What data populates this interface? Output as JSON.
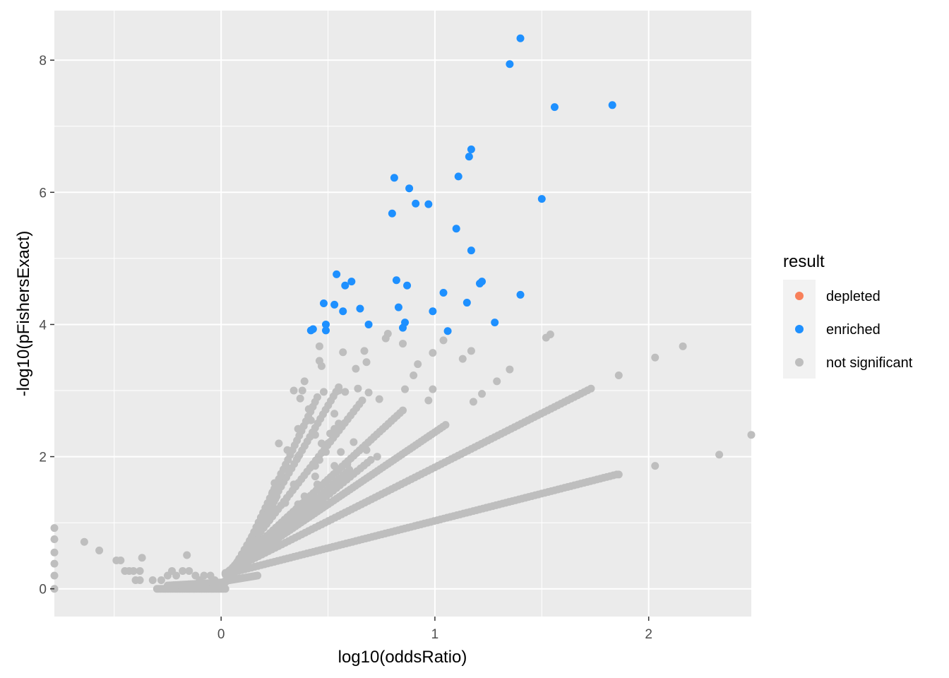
{
  "chart_data": {
    "type": "scatter",
    "xlabel": "log10(oddsRatio)",
    "ylabel": "-log10(pFishersExact)",
    "xlim": [
      -0.78,
      2.48
    ],
    "ylim": [
      -0.42,
      8.75
    ],
    "x_ticks": [
      0,
      1,
      2
    ],
    "x_tick_labels": [
      "0",
      "1",
      "2"
    ],
    "y_ticks": [
      0,
      2,
      4,
      6,
      8
    ],
    "y_tick_labels": [
      "0",
      "2",
      "4",
      "6",
      "8"
    ],
    "grid": true,
    "legend": {
      "title": "result",
      "placement": "right",
      "entries": [
        {
          "label": "depleted",
          "color": "#F8805A"
        },
        {
          "label": "enriched",
          "color": "#1E90FF"
        },
        {
          "label": "not significant",
          "color": "#BEBEBE"
        }
      ]
    },
    "colors": {
      "panel_background": "#EBEBEB",
      "grid_line": "#FFFFFF",
      "depleted": "#F8805A",
      "enriched": "#1E90FF",
      "not_significant": "#BEBEBE"
    },
    "series": [
      {
        "name": "enriched",
        "color": "#1E90FF",
        "points": [
          [
            1.4,
            8.33
          ],
          [
            1.35,
            7.94
          ],
          [
            1.56,
            7.29
          ],
          [
            1.83,
            7.32
          ],
          [
            1.17,
            6.65
          ],
          [
            1.16,
            6.54
          ],
          [
            1.11,
            6.24
          ],
          [
            0.81,
            6.22
          ],
          [
            0.88,
            6.06
          ],
          [
            0.91,
            5.83
          ],
          [
            0.97,
            5.82
          ],
          [
            0.8,
            5.68
          ],
          [
            1.5,
            5.9
          ],
          [
            1.1,
            5.45
          ],
          [
            1.17,
            5.12
          ],
          [
            0.54,
            4.76
          ],
          [
            0.61,
            4.65
          ],
          [
            0.58,
            4.59
          ],
          [
            0.82,
            4.67
          ],
          [
            0.87,
            4.59
          ],
          [
            1.22,
            4.65
          ],
          [
            1.21,
            4.62
          ],
          [
            1.04,
            4.48
          ],
          [
            1.4,
            4.45
          ],
          [
            0.48,
            4.32
          ],
          [
            0.53,
            4.3
          ],
          [
            0.57,
            4.2
          ],
          [
            0.65,
            4.24
          ],
          [
            0.83,
            4.26
          ],
          [
            1.15,
            4.33
          ],
          [
            0.99,
            4.2
          ],
          [
            0.49,
            4.0
          ],
          [
            0.43,
            3.93
          ],
          [
            0.42,
            3.91
          ],
          [
            0.49,
            3.91
          ],
          [
            0.69,
            4.0
          ],
          [
            0.85,
            3.95
          ],
          [
            0.86,
            4.03
          ],
          [
            1.06,
            3.9
          ],
          [
            1.28,
            4.03
          ]
        ]
      },
      {
        "name": "not significant",
        "color": "#BEBEBE",
        "points": [
          [
            -0.78,
            0.92
          ],
          [
            -0.78,
            0.75
          ],
          [
            -0.78,
            0.55
          ],
          [
            -0.78,
            0.38
          ],
          [
            -0.78,
            0.2
          ],
          [
            -0.78,
            0.0
          ],
          [
            -0.64,
            0.71
          ],
          [
            -0.57,
            0.58
          ],
          [
            -0.49,
            0.43
          ],
          [
            -0.47,
            0.43
          ],
          [
            -0.45,
            0.27
          ],
          [
            -0.43,
            0.27
          ],
          [
            -0.41,
            0.27
          ],
          [
            -0.38,
            0.27
          ],
          [
            -0.4,
            0.13
          ],
          [
            -0.38,
            0.13
          ],
          [
            -0.37,
            0.47
          ],
          [
            -0.32,
            0.13
          ],
          [
            -0.28,
            0.13
          ],
          [
            -0.25,
            0.2
          ],
          [
            -0.23,
            0.27
          ],
          [
            -0.21,
            0.2
          ],
          [
            -0.18,
            0.27
          ],
          [
            -0.16,
            0.51
          ],
          [
            -0.15,
            0.27
          ],
          [
            -0.12,
            0.2
          ],
          [
            -0.1,
            0.13
          ],
          [
            -0.08,
            0.2
          ],
          [
            -0.05,
            0.2
          ],
          [
            -0.03,
            0.13
          ],
          [
            -0.01,
            0.05
          ],
          [
            2.03,
            3.5
          ],
          [
            2.16,
            3.67
          ],
          [
            1.86,
            3.23
          ],
          [
            1.52,
            3.8
          ],
          [
            1.54,
            3.85
          ],
          [
            1.29,
            3.14
          ],
          [
            1.35,
            3.32
          ],
          [
            1.17,
            3.6
          ],
          [
            1.13,
            3.48
          ],
          [
            1.04,
            3.76
          ],
          [
            0.99,
            3.57
          ],
          [
            0.92,
            3.4
          ],
          [
            0.85,
            3.71
          ],
          [
            0.77,
            3.79
          ],
          [
            0.78,
            3.86
          ],
          [
            0.68,
            3.43
          ],
          [
            0.67,
            3.6
          ],
          [
            0.57,
            3.58
          ],
          [
            0.46,
            3.67
          ],
          [
            0.46,
            3.45
          ],
          [
            0.47,
            3.37
          ],
          [
            0.39,
            3.14
          ],
          [
            0.38,
            3.0
          ],
          [
            0.34,
            3.0
          ],
          [
            0.37,
            2.88
          ],
          [
            0.48,
            2.98
          ],
          [
            0.55,
            3.0
          ],
          [
            0.58,
            2.98
          ],
          [
            0.63,
            3.33
          ],
          [
            0.64,
            3.03
          ],
          [
            0.69,
            2.97
          ],
          [
            0.74,
            2.87
          ],
          [
            0.86,
            3.02
          ],
          [
            0.9,
            3.23
          ],
          [
            0.99,
            3.02
          ],
          [
            0.97,
            2.85
          ],
          [
            1.18,
            2.83
          ],
          [
            1.22,
            2.95
          ],
          [
            2.33,
            2.03
          ],
          [
            2.03,
            1.86
          ],
          [
            1.86,
            1.73
          ],
          [
            2.48,
            2.33
          ],
          [
            0.36,
            2.42
          ],
          [
            0.41,
            2.72
          ],
          [
            0.44,
            2.33
          ],
          [
            0.47,
            2.2
          ],
          [
            0.51,
            2.35
          ],
          [
            0.53,
            2.65
          ],
          [
            0.53,
            2.42
          ],
          [
            0.49,
            2.07
          ],
          [
            0.53,
            1.86
          ],
          [
            0.36,
            2.0
          ],
          [
            0.32,
            1.82
          ],
          [
            0.28,
            1.74
          ],
          [
            0.25,
            1.6
          ],
          [
            0.24,
            1.46
          ],
          [
            0.3,
            1.3
          ],
          [
            0.44,
            1.86
          ],
          [
            0.45,
            1.58
          ],
          [
            0.39,
            1.4
          ],
          [
            0.48,
            1.44
          ],
          [
            0.4,
            1.12
          ],
          [
            0.36,
            1.28
          ],
          [
            0.44,
            1.7
          ],
          [
            0.34,
            1.58
          ],
          [
            0.56,
            2.07
          ],
          [
            0.59,
            1.88
          ],
          [
            0.5,
            2.2
          ],
          [
            0.46,
            1.95
          ],
          [
            0.55,
            2.5
          ],
          [
            0.62,
            2.22
          ],
          [
            0.68,
            2.1
          ],
          [
            0.73,
            2.0
          ],
          [
            0.42,
            2.55
          ],
          [
            0.27,
            2.2
          ],
          [
            0.31,
            2.1
          ]
        ],
        "lines": [
          {
            "from": [
              0.02,
              0.22
            ],
            "to": [
              1.85,
              1.73
            ],
            "n": 120
          },
          {
            "from": [
              0.02,
              0.24
            ],
            "to": [
              1.73,
              3.03
            ],
            "n": 110
          },
          {
            "from": [
              0.03,
              0.25
            ],
            "to": [
              1.05,
              2.48
            ],
            "n": 80
          },
          {
            "from": [
              0.04,
              0.28
            ],
            "to": [
              0.85,
              2.7
            ],
            "n": 60
          },
          {
            "from": [
              0.05,
              0.3
            ],
            "to": [
              0.66,
              2.85
            ],
            "n": 45
          },
          {
            "from": [
              0.06,
              0.32
            ],
            "to": [
              0.55,
              3.05
            ],
            "n": 40
          },
          {
            "from": [
              0.08,
              0.35
            ],
            "to": [
              0.45,
              2.9
            ],
            "n": 35
          },
          {
            "from": [
              0.06,
              0.25
            ],
            "to": [
              0.7,
              1.95
            ],
            "n": 40
          },
          {
            "from": [
              0.08,
              0.3
            ],
            "to": [
              0.6,
              1.8
            ],
            "n": 35
          },
          {
            "from": [
              -0.3,
              0.0
            ],
            "to": [
              0.02,
              0.0
            ],
            "n": 40
          },
          {
            "from": [
              -0.25,
              0.05
            ],
            "to": [
              0.02,
              0.1
            ],
            "n": 30
          },
          {
            "from": [
              0.02,
              0.12
            ],
            "to": [
              0.17,
              0.2
            ],
            "n": 20
          },
          {
            "from": [
              0.1,
              0.4
            ],
            "to": [
              0.26,
              1.4
            ],
            "n": 25
          }
        ]
      }
    ]
  }
}
